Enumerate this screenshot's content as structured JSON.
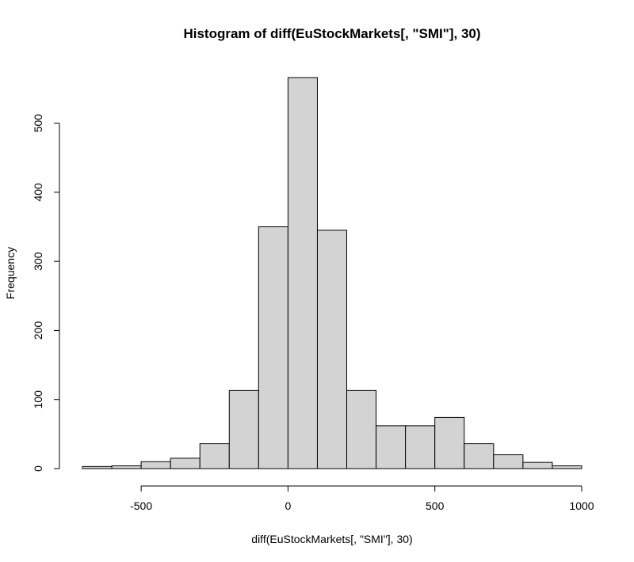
{
  "chart_data": {
    "type": "bar",
    "title": "Histogram of diff(EuStockMarkets[, \"SMI\"], 30)",
    "xlabel": "diff(EuStockMarkets[, \"SMI\"], 30)",
    "ylabel": "Frequency",
    "xlim": [
      -700,
      1000
    ],
    "ylim": [
      0,
      566
    ],
    "x_ticks": [
      -500,
      0,
      500,
      1000
    ],
    "y_ticks": [
      0,
      100,
      200,
      300,
      400,
      500
    ],
    "grid": false,
    "bar_color": "#d3d3d3",
    "bins": [
      {
        "from": -700,
        "to": -600,
        "count": 3
      },
      {
        "from": -600,
        "to": -500,
        "count": 4
      },
      {
        "from": -500,
        "to": -400,
        "count": 10
      },
      {
        "from": -400,
        "to": -300,
        "count": 15
      },
      {
        "from": -300,
        "to": -200,
        "count": 36
      },
      {
        "from": -200,
        "to": -100,
        "count": 113
      },
      {
        "from": -100,
        "to": 0,
        "count": 350
      },
      {
        "from": 0,
        "to": 100,
        "count": 566
      },
      {
        "from": 100,
        "to": 200,
        "count": 345
      },
      {
        "from": 200,
        "to": 300,
        "count": 113
      },
      {
        "from": 300,
        "to": 400,
        "count": 62
      },
      {
        "from": 400,
        "to": 500,
        "count": 62
      },
      {
        "from": 500,
        "to": 600,
        "count": 74
      },
      {
        "from": 600,
        "to": 700,
        "count": 36
      },
      {
        "from": 700,
        "to": 800,
        "count": 20
      },
      {
        "from": 800,
        "to": 900,
        "count": 9
      },
      {
        "from": 900,
        "to": 1000,
        "count": 4
      }
    ]
  }
}
